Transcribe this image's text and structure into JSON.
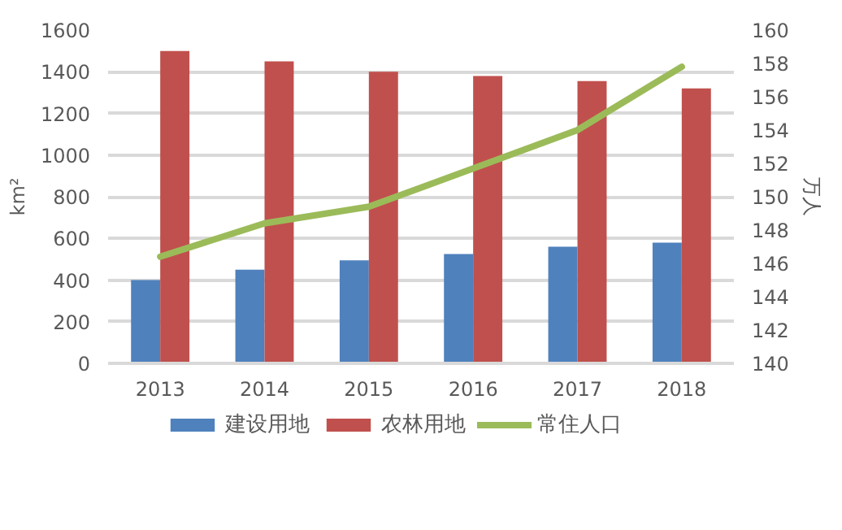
{
  "chart_data": {
    "type": "bar",
    "categories": [
      "2013",
      "2014",
      "2015",
      "2016",
      "2017",
      "2018"
    ],
    "ylabel": "km²",
    "y2label": "万人",
    "ylim": [
      0,
      1600
    ],
    "yticks": [
      0,
      200,
      400,
      600,
      800,
      1000,
      1200,
      1400,
      1600
    ],
    "y2lim": [
      140,
      160
    ],
    "y2ticks": [
      140,
      142,
      144,
      146,
      148,
      150,
      152,
      154,
      156,
      158,
      160
    ],
    "grid": "y",
    "legend": "bottom",
    "series": [
      {
        "name": "建设用地",
        "color": "#4f81bd",
        "values": [
          400,
          450,
          495,
          525,
          560,
          580
        ]
      },
      {
        "name": "农林用地",
        "color": "#c0504d",
        "values": [
          1500,
          1450,
          1400,
          1380,
          1355,
          1320
        ]
      },
      {
        "name": "常住人口",
        "color": "#9bbb59",
        "type": "line",
        "axis": "y2",
        "values": [
          146.4,
          148.4,
          149.4,
          151.7,
          154.0,
          157.8
        ]
      }
    ]
  }
}
